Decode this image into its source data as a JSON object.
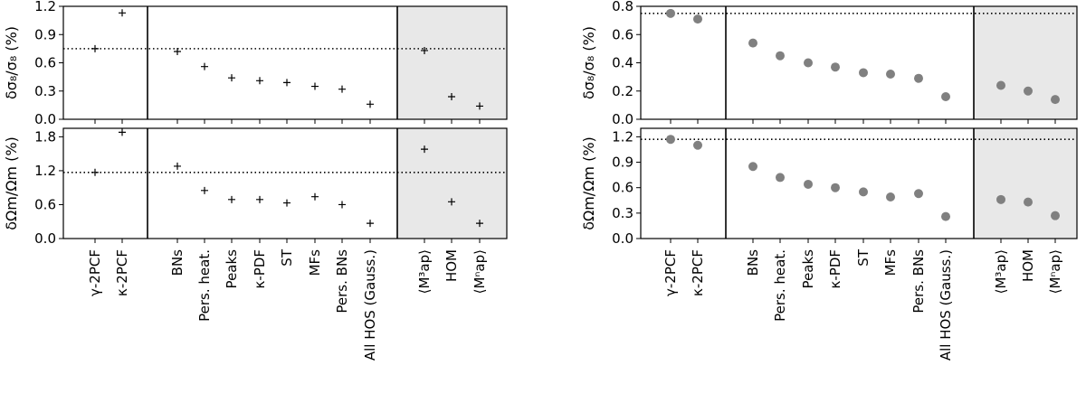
{
  "categories": [
    "γ-2PCF",
    "κ-2PCF",
    "BNs",
    "Pers. heat.",
    "Peaks",
    "κ-PDF",
    "ST",
    "MFs",
    "Pers. BNs",
    "All HOS (Gauss.)",
    "⟨M³ap⟩",
    "HOM",
    "⟨Mⁿap⟩"
  ],
  "colors": {
    "shade": "#e8e8e8",
    "cross": "#000000",
    "dot": "#808080",
    "frame": "#000000"
  },
  "chart_data": [
    {
      "type": "scatter",
      "panel": "left-top",
      "marker": "plus",
      "ylabel": "δσ₈/σ₈ (%)",
      "ylim": [
        0,
        1.2
      ],
      "yticks": [
        0.0,
        0.3,
        0.6,
        0.9,
        1.2
      ],
      "ytick_labels": [
        "0.0",
        "0.3",
        "0.6",
        "0.9",
        "1.2"
      ],
      "reference_line": 0.75,
      "shaded_categories": [
        "⟨M³ap⟩",
        "HOM",
        "⟨Mⁿap⟩"
      ],
      "values": [
        0.75,
        1.13,
        0.72,
        0.56,
        0.44,
        0.41,
        0.39,
        0.35,
        0.32,
        0.16,
        0.73,
        0.24,
        0.14
      ]
    },
    {
      "type": "scatter",
      "panel": "left-bottom",
      "marker": "plus",
      "ylabel": "δΩm/Ωm (%)",
      "ylim": [
        0,
        1.95
      ],
      "yticks": [
        0.0,
        0.6,
        1.2,
        1.8
      ],
      "ytick_labels": [
        "0.0",
        "0.6",
        "1.2",
        "1.8"
      ],
      "reference_line": 1.17,
      "shaded_categories": [
        "⟨M³ap⟩",
        "HOM",
        "⟨Mⁿap⟩"
      ],
      "values": [
        1.17,
        1.88,
        1.28,
        0.85,
        0.69,
        0.69,
        0.63,
        0.74,
        0.6,
        0.27,
        1.58,
        0.65,
        0.27
      ]
    },
    {
      "type": "scatter",
      "panel": "right-top",
      "marker": "dot",
      "ylabel": "δσ₈/σ₈ (%)",
      "ylim": [
        0,
        0.8
      ],
      "yticks": [
        0.0,
        0.2,
        0.4,
        0.6,
        0.8
      ],
      "ytick_labels": [
        "0.0",
        "0.2",
        "0.4",
        "0.6",
        "0.8"
      ],
      "reference_line": 0.75,
      "shaded_categories": [
        "⟨M³ap⟩",
        "HOM",
        "⟨Mⁿap⟩"
      ],
      "values": [
        0.75,
        0.71,
        0.54,
        0.45,
        0.4,
        0.37,
        0.33,
        0.32,
        0.29,
        0.16,
        0.24,
        0.2,
        0.14
      ]
    },
    {
      "type": "scatter",
      "panel": "right-bottom",
      "marker": "dot",
      "ylabel": "δΩm/Ωm (%)",
      "ylim": [
        0,
        1.3
      ],
      "yticks": [
        0.0,
        0.3,
        0.6,
        0.9,
        1.2
      ],
      "ytick_labels": [
        "0.0",
        "0.3",
        "0.6",
        "0.9",
        "1.2"
      ],
      "reference_line": 1.17,
      "shaded_categories": [
        "⟨M³ap⟩",
        "HOM",
        "⟨Mⁿap⟩"
      ],
      "values": [
        1.17,
        1.1,
        0.85,
        0.72,
        0.64,
        0.6,
        0.55,
        0.49,
        0.53,
        0.26,
        0.46,
        0.43,
        0.27
      ]
    }
  ]
}
